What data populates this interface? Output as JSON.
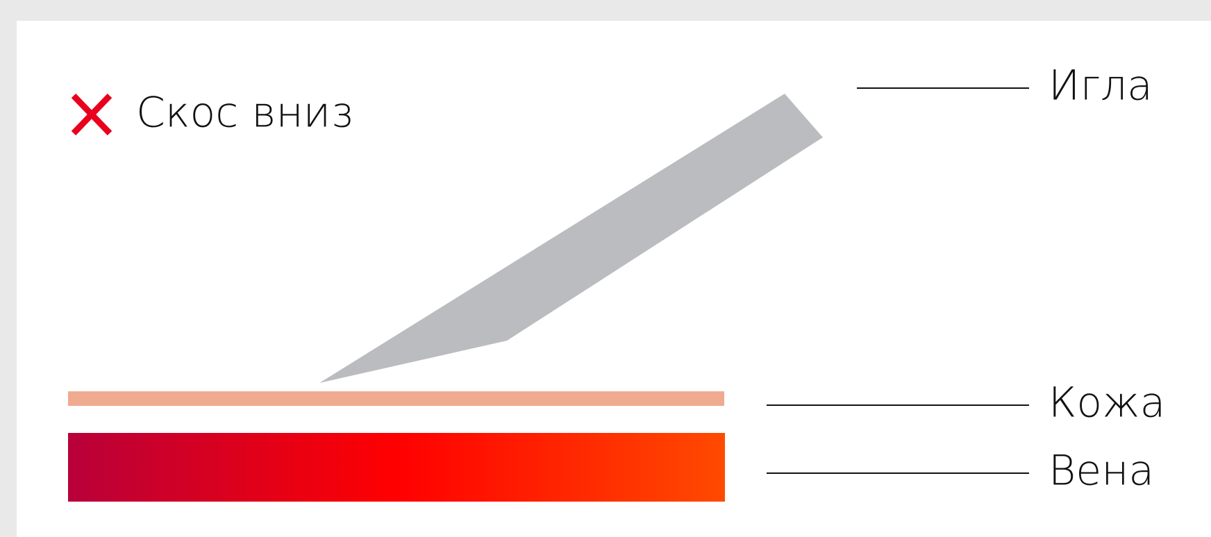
{
  "header": {
    "title": "Скос вниз"
  },
  "labels": {
    "needle": "Игла",
    "skin": "Кожа",
    "vein": "Вена"
  }
}
